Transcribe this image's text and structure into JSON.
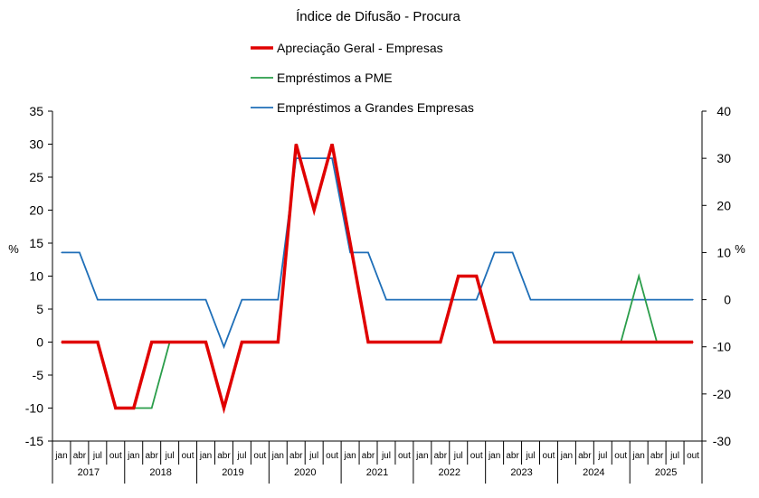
{
  "chart_data": {
    "type": "line",
    "title": "Índice de Difusão - Procura",
    "ylabel": "%",
    "y2label": "%",
    "ylim": [
      -15,
      35
    ],
    "y2lim": [
      -30,
      40
    ],
    "yticks": [
      "35",
      "30",
      "25",
      "20",
      "15",
      "10",
      "5",
      "0",
      "-5",
      "-10",
      "-15"
    ],
    "y2ticks": [
      "40",
      "30",
      "20",
      "10",
      "0",
      "-10",
      "-20",
      "-30"
    ],
    "month_labels": [
      "jan",
      "abr",
      "jul",
      "out"
    ],
    "years": [
      "2017",
      "2018",
      "2019",
      "2020",
      "2021",
      "2022",
      "2023",
      "2024",
      "2025"
    ],
    "legend_position": "top-center",
    "grid": false,
    "series": [
      {
        "name": "Apreciação Geral - Empresas",
        "axis": "left",
        "color": "#e00000",
        "values": [
          0,
          0,
          0,
          -10,
          -10,
          0,
          0,
          0,
          0,
          -10,
          0,
          0,
          0,
          30,
          20,
          30,
          15,
          0,
          0,
          0,
          0,
          0,
          10,
          10,
          0,
          0,
          0,
          0,
          0,
          0,
          0,
          0,
          0,
          0,
          0,
          0
        ]
      },
      {
        "name": "Empréstimos a PME",
        "axis": "left",
        "color": "#2a9d4a",
        "values": [
          0,
          0,
          0,
          -10,
          -10,
          -10,
          0,
          0,
          0,
          -10,
          0,
          0,
          0,
          30,
          20,
          30,
          15,
          0,
          0,
          0,
          0,
          0,
          10,
          10,
          0,
          0,
          0,
          0,
          0,
          0,
          0,
          0,
          10,
          0,
          0,
          0
        ]
      },
      {
        "name": "Empréstimos a Grandes Empresas",
        "axis": "right",
        "color": "#1f6fb8",
        "values": [
          10,
          10,
          0,
          0,
          0,
          0,
          0,
          0,
          0,
          -10,
          0,
          0,
          0,
          30,
          30,
          30,
          10,
          10,
          0,
          0,
          0,
          0,
          0,
          0,
          10,
          10,
          0,
          0,
          0,
          0,
          0,
          0,
          0,
          0,
          0,
          0
        ]
      }
    ]
  }
}
